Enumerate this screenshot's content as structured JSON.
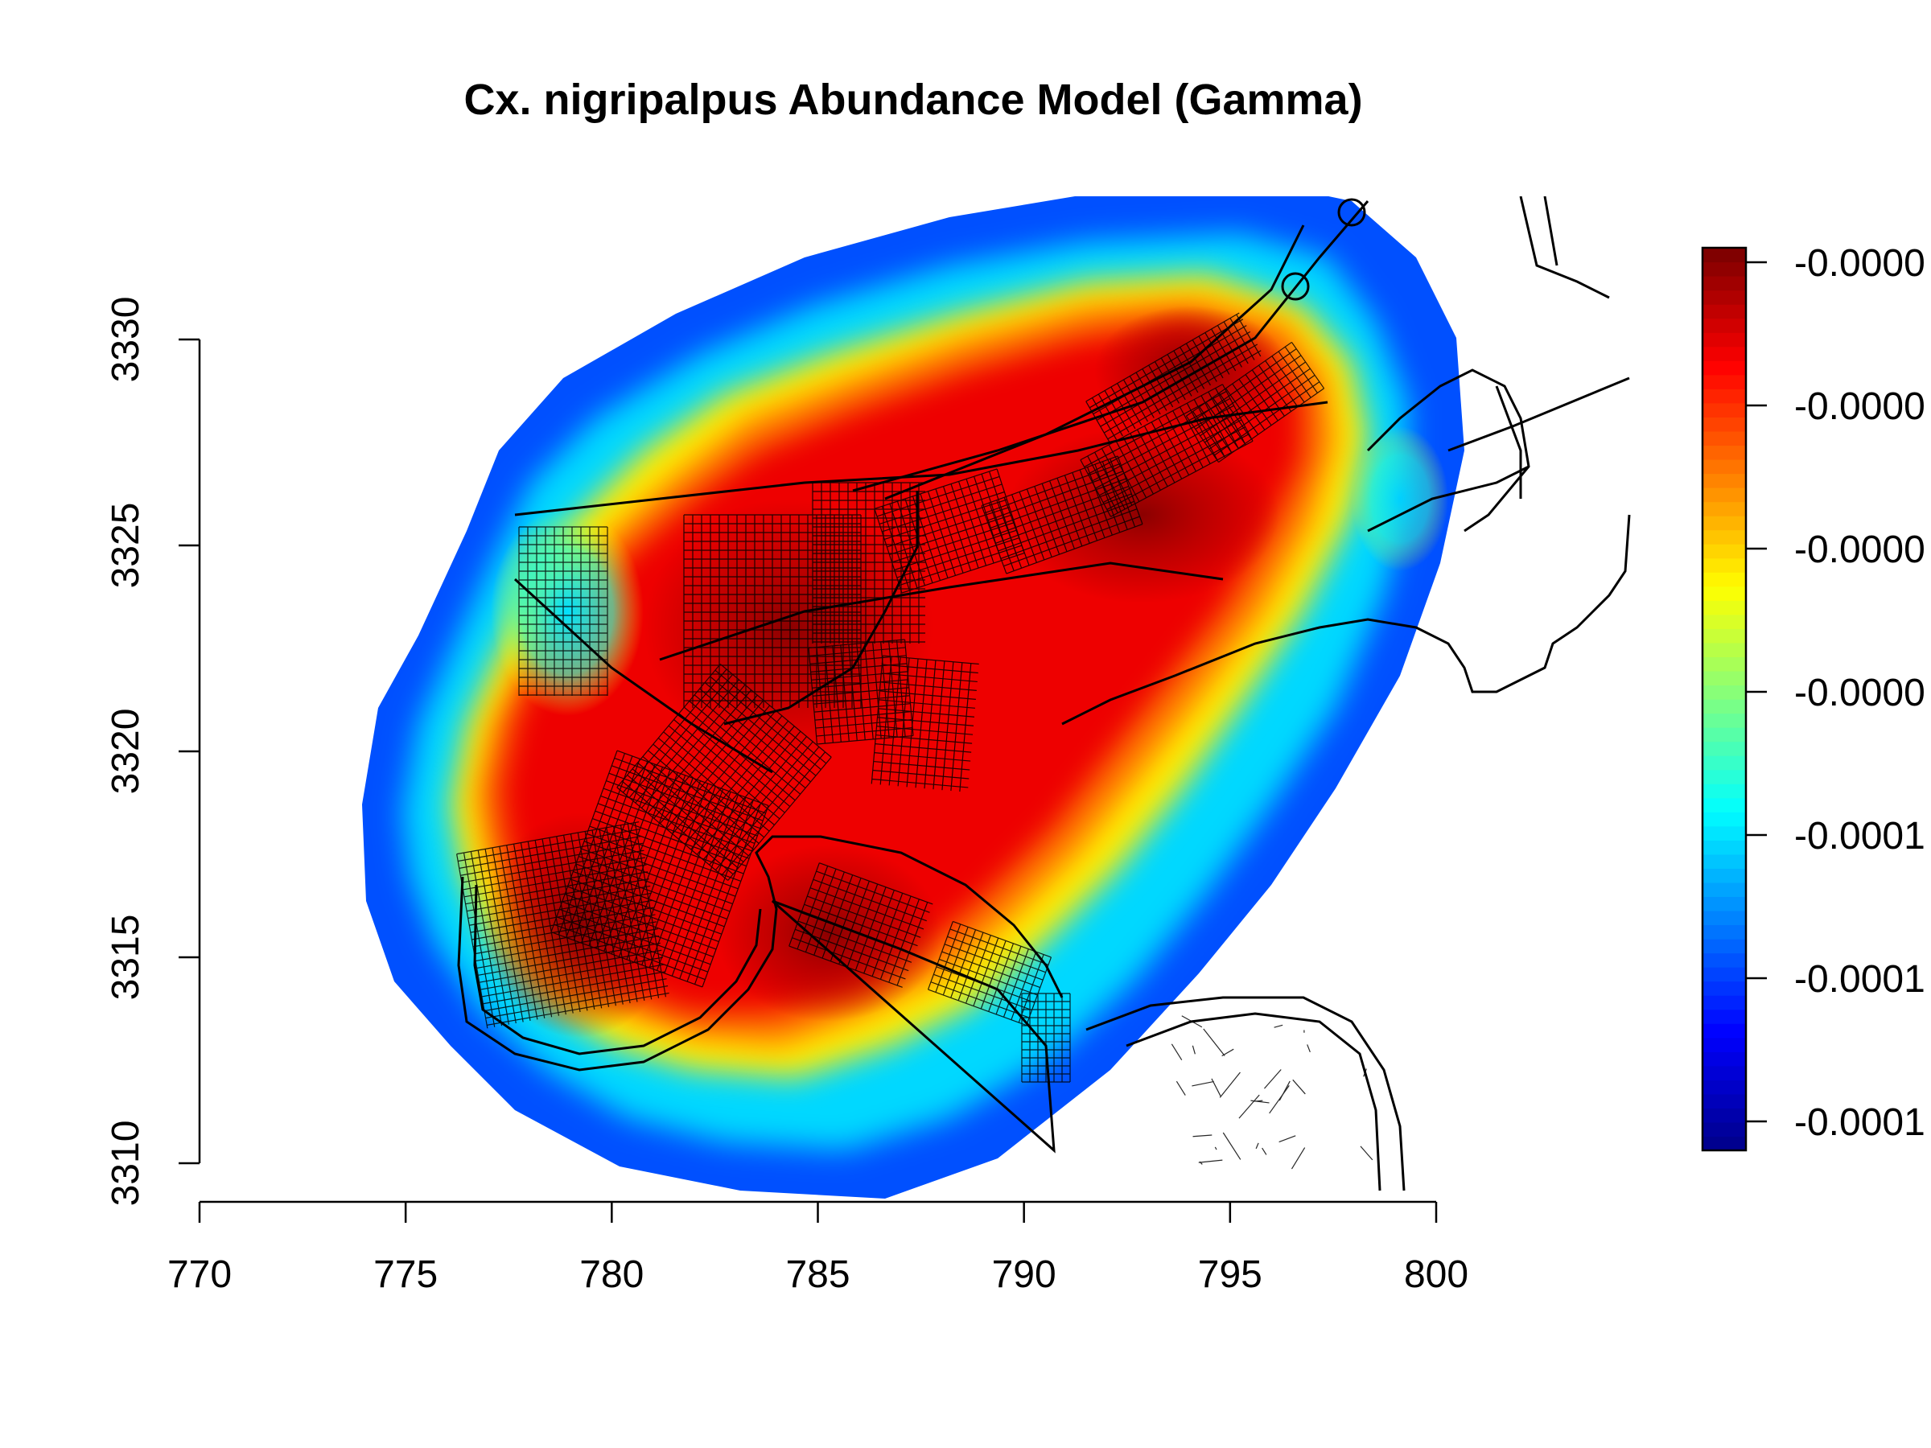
{
  "chart_data": {
    "type": "heatmap",
    "title": "Cx. nigripalpus Abundance Model (Gamma)",
    "xlabel": "",
    "ylabel": "",
    "x_range": [
      770,
      800
    ],
    "y_range": [
      3310,
      3330
    ],
    "x_ticks": [
      "770",
      "775",
      "780",
      "785",
      "790",
      "795",
      "800"
    ],
    "y_ticks": [
      "3310",
      "3315",
      "3320",
      "3325",
      "3330"
    ],
    "colorbar": {
      "palette": "jet",
      "colors": [
        "#00008f",
        "#0000ff",
        "#0080ff",
        "#00ffff",
        "#80ff80",
        "#ffff00",
        "#ff8000",
        "#ff0000",
        "#800000"
      ],
      "labels": [
        "-0.0000",
        "-0.0000",
        "-0.0000",
        "-0.0000",
        "-0.0001",
        "-0.0001",
        "-0.0001"
      ]
    },
    "overlay": "road network and coastline lines (black)",
    "grid": false
  }
}
